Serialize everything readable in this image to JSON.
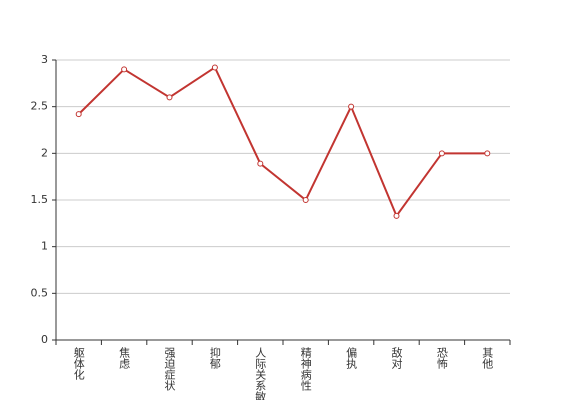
{
  "chart_data": {
    "type": "line",
    "categories": [
      "躯体化",
      "焦虑",
      "强迫症状",
      "抑郁",
      "人际关系敏感",
      "精神病性",
      "偏执",
      "敌对",
      "恐怖",
      "其他"
    ],
    "values": [
      2.42,
      2.9,
      2.6,
      2.92,
      1.89,
      1.5,
      2.5,
      1.33,
      2.0,
      2.0
    ],
    "color": "#c23531",
    "ylim": [
      0,
      3
    ],
    "yticks": [
      0,
      0.5,
      1,
      1.5,
      2,
      2.5,
      3
    ],
    "grid": true
  }
}
